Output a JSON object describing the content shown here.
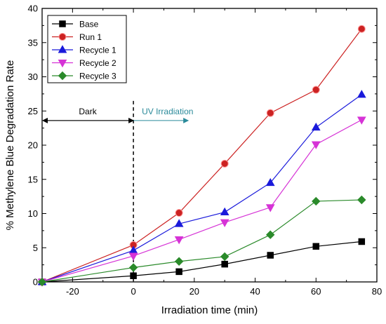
{
  "chart_data": {
    "type": "line",
    "xlabel": "Irradiation time (min)",
    "ylabel": "% Methylene Blue Degradation Rate",
    "xlim": [
      -30,
      80
    ],
    "ylim": [
      0,
      40
    ],
    "x_ticks": [
      -20,
      0,
      20,
      40,
      60,
      80
    ],
    "y_ticks": [
      0,
      5,
      10,
      15,
      20,
      25,
      30,
      35,
      40
    ],
    "legend_position": "top-left",
    "grid": false,
    "series": [
      {
        "name": "Base",
        "marker": "square",
        "color": "#000000",
        "x": [
          -30,
          0,
          15,
          30,
          45,
          60,
          75
        ],
        "y": [
          0,
          0.9,
          1.5,
          2.6,
          3.9,
          5.2,
          5.9
        ]
      },
      {
        "name": "Run 1",
        "marker": "circle",
        "color": "#cc2222",
        "x": [
          -30,
          0,
          15,
          30,
          45,
          60,
          75
        ],
        "y": [
          0,
          5.4,
          10.1,
          17.3,
          24.7,
          28.1,
          37.0
        ]
      },
      {
        "name": "Recycle 1",
        "marker": "triangle-up",
        "color": "#1a1adb",
        "x": [
          -30,
          0,
          15,
          30,
          45,
          60,
          75
        ],
        "y": [
          0,
          4.6,
          8.5,
          10.2,
          14.5,
          22.6,
          27.4
        ]
      },
      {
        "name": "Recycle 2",
        "marker": "triangle-down",
        "color": "#d633d6",
        "x": [
          -30,
          0,
          15,
          30,
          45,
          60,
          75
        ],
        "y": [
          0,
          3.8,
          6.2,
          8.7,
          10.9,
          20.1,
          23.7
        ]
      },
      {
        "name": "Recycle 3",
        "marker": "diamond",
        "color": "#2a8a2a",
        "x": [
          -30,
          0,
          15,
          30,
          45,
          60,
          75
        ],
        "y": [
          0,
          2.1,
          3.0,
          3.7,
          6.9,
          11.8,
          12.0
        ]
      }
    ],
    "annotations": {
      "dark_label": "Dark",
      "uv_label": "UV Irradiation",
      "divider_x": 0,
      "divider_color": "#000000",
      "dark_arrow_color": "#000000",
      "uv_arrow_color": "#2a8a9a",
      "arrow_y": 23.6,
      "dark_from_x": -30,
      "uv_to_x": 18
    }
  }
}
